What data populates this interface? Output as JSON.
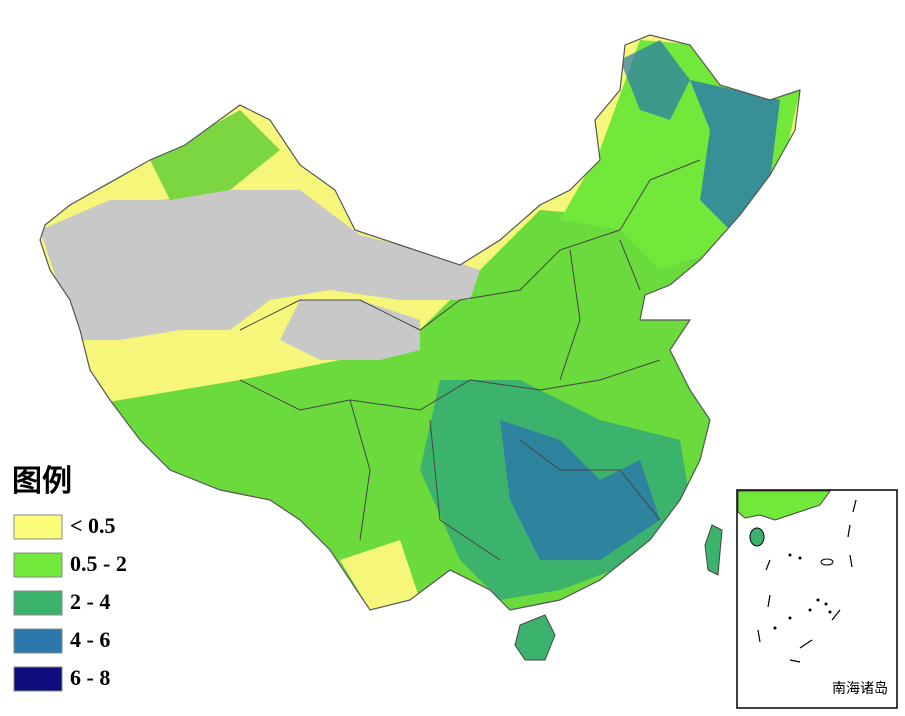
{
  "legend": {
    "title": "图例",
    "items": [
      {
        "label": "< 0.5",
        "color": "#fdfd7c"
      },
      {
        "label": "0.5 - 2",
        "color": "#71e83a"
      },
      {
        "label": "2 - 4",
        "color": "#3cb36c"
      },
      {
        "label": "4 - 6",
        "color": "#2a78ac"
      },
      {
        "label": "6 - 8",
        "color": "#0c0c7c"
      }
    ]
  },
  "inset": {
    "label": "南海诸岛"
  }
}
